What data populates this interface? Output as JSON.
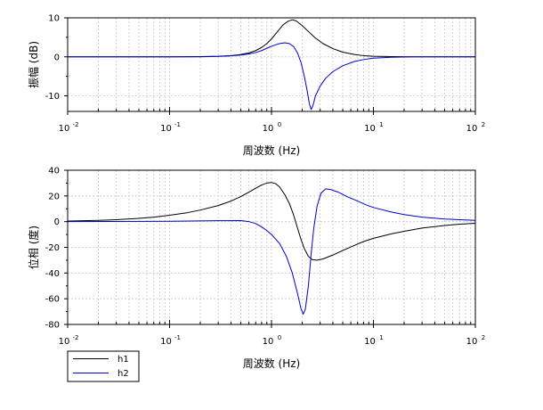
{
  "chart_data": [
    {
      "type": "line",
      "xlabel": "周波数 (Hz)",
      "ylabel": "振幅 (dB)",
      "xscale": "log",
      "xlim": [
        0.01,
        100
      ],
      "ylim": [
        -14,
        10
      ],
      "xticks": [
        {
          "value": 0.01,
          "base": "10",
          "exp": "-2"
        },
        {
          "value": 0.1,
          "base": "10",
          "exp": "-1"
        },
        {
          "value": 1,
          "base": "10",
          "exp": "0"
        },
        {
          "value": 10,
          "base": "10",
          "exp": "1"
        },
        {
          "value": 100,
          "base": "10",
          "exp": "2"
        }
      ],
      "yticks": [
        {
          "value": 10,
          "label": "10"
        },
        {
          "value": 0,
          "label": "0"
        },
        {
          "value": -10,
          "label": "-10"
        }
      ],
      "grid": true,
      "series": [
        {
          "name": "h1",
          "color": "#000000",
          "points": [
            [
              0.01,
              0
            ],
            [
              0.1,
              0
            ],
            [
              0.2,
              0.05
            ],
            [
              0.3,
              0.15
            ],
            [
              0.4,
              0.3
            ],
            [
              0.5,
              0.6
            ],
            [
              0.6,
              1.0
            ],
            [
              0.7,
              1.6
            ],
            [
              0.8,
              2.4
            ],
            [
              0.9,
              3.4
            ],
            [
              1.0,
              4.6
            ],
            [
              1.1,
              5.9
            ],
            [
              1.2,
              7.1
            ],
            [
              1.3,
              8.2
            ],
            [
              1.45,
              9.1
            ],
            [
              1.6,
              9.5
            ],
            [
              1.75,
              9.2
            ],
            [
              2.0,
              8.0
            ],
            [
              2.3,
              6.5
            ],
            [
              2.7,
              4.8
            ],
            [
              3.2,
              3.4
            ],
            [
              4.0,
              2.1
            ],
            [
              5.0,
              1.2
            ],
            [
              6.5,
              0.6
            ],
            [
              8.0,
              0.3
            ],
            [
              10,
              0.15
            ],
            [
              15,
              0.05
            ],
            [
              25,
              0
            ],
            [
              100,
              0
            ]
          ]
        },
        {
          "name": "h2",
          "color": "#0000cc",
          "points": [
            [
              0.01,
              0
            ],
            [
              0.2,
              0
            ],
            [
              0.3,
              0.1
            ],
            [
              0.4,
              0.25
            ],
            [
              0.5,
              0.45
            ],
            [
              0.6,
              0.75
            ],
            [
              0.7,
              1.1
            ],
            [
              0.8,
              1.6
            ],
            [
              0.9,
              2.2
            ],
            [
              1.0,
              2.7
            ],
            [
              1.1,
              3.1
            ],
            [
              1.2,
              3.4
            ],
            [
              1.35,
              3.6
            ],
            [
              1.5,
              3.4
            ],
            [
              1.65,
              2.6
            ],
            [
              1.8,
              1.0
            ],
            [
              1.95,
              -1.5
            ],
            [
              2.1,
              -5.0
            ],
            [
              2.25,
              -9.0
            ],
            [
              2.35,
              -12.0
            ],
            [
              2.45,
              -13.5
            ],
            [
              2.55,
              -12.5
            ],
            [
              2.7,
              -10.0
            ],
            [
              3.0,
              -7.5
            ],
            [
              3.4,
              -5.5
            ],
            [
              4.0,
              -3.8
            ],
            [
              5.0,
              -2.3
            ],
            [
              6.5,
              -1.2
            ],
            [
              8.0,
              -0.7
            ],
            [
              10,
              -0.35
            ],
            [
              15,
              -0.1
            ],
            [
              25,
              0
            ],
            [
              100,
              0
            ]
          ]
        }
      ]
    },
    {
      "type": "line",
      "xlabel": "周波数 (Hz)",
      "ylabel": "位相 (度)",
      "xscale": "log",
      "xlim": [
        0.01,
        100
      ],
      "ylim": [
        -80,
        40
      ],
      "xticks": [
        {
          "value": 0.01,
          "base": "10",
          "exp": "-2"
        },
        {
          "value": 0.1,
          "base": "10",
          "exp": "-1"
        },
        {
          "value": 1,
          "base": "10",
          "exp": "0"
        },
        {
          "value": 10,
          "base": "10",
          "exp": "1"
        },
        {
          "value": 100,
          "base": "10",
          "exp": "2"
        }
      ],
      "yticks": [
        {
          "value": 40,
          "label": "40"
        },
        {
          "value": 20,
          "label": "20"
        },
        {
          "value": 0,
          "label": "0"
        },
        {
          "value": -20,
          "label": "-20"
        },
        {
          "value": -40,
          "label": "-40"
        },
        {
          "value": -60,
          "label": "-60"
        },
        {
          "value": -80,
          "label": "-80"
        }
      ],
      "grid": true,
      "legend": {
        "placement": "bottom-left-outside",
        "entries": [
          "h1",
          "h2"
        ]
      },
      "series": [
        {
          "name": "h1",
          "color": "#000000",
          "points": [
            [
              0.01,
              0.5
            ],
            [
              0.02,
              1
            ],
            [
              0.03,
              1.5
            ],
            [
              0.05,
              2.5
            ],
            [
              0.07,
              3.5
            ],
            [
              0.1,
              5
            ],
            [
              0.15,
              7
            ],
            [
              0.2,
              9
            ],
            [
              0.3,
              12.5
            ],
            [
              0.4,
              16
            ],
            [
              0.5,
              19.5
            ],
            [
              0.6,
              23
            ],
            [
              0.7,
              26
            ],
            [
              0.8,
              28.5
            ],
            [
              0.9,
              30
            ],
            [
              1.0,
              30.5
            ],
            [
              1.1,
              29.5
            ],
            [
              1.2,
              27
            ],
            [
              1.35,
              21
            ],
            [
              1.5,
              14
            ],
            [
              1.65,
              5
            ],
            [
              1.8,
              -5
            ],
            [
              1.95,
              -14
            ],
            [
              2.1,
              -21
            ],
            [
              2.3,
              -27
            ],
            [
              2.5,
              -29.5
            ],
            [
              2.8,
              -30
            ],
            [
              3.2,
              -29
            ],
            [
              4.0,
              -26
            ],
            [
              5.0,
              -22.5
            ],
            [
              6.5,
              -18.5
            ],
            [
              8.0,
              -15.5
            ],
            [
              10,
              -13
            ],
            [
              15,
              -9.5
            ],
            [
              20,
              -7.5
            ],
            [
              30,
              -5
            ],
            [
              50,
              -3
            ],
            [
              70,
              -2
            ],
            [
              100,
              -1.3
            ]
          ]
        },
        {
          "name": "h2",
          "color": "#0000cc",
          "points": [
            [
              0.01,
              0
            ],
            [
              0.1,
              0.3
            ],
            [
              0.3,
              0.7
            ],
            [
              0.5,
              0.8
            ],
            [
              0.6,
              0
            ],
            [
              0.7,
              -1.5
            ],
            [
              0.8,
              -4
            ],
            [
              0.9,
              -7
            ],
            [
              1.0,
              -10
            ],
            [
              1.2,
              -17
            ],
            [
              1.4,
              -27
            ],
            [
              1.6,
              -40
            ],
            [
              1.8,
              -56
            ],
            [
              1.95,
              -68
            ],
            [
              2.05,
              -72
            ],
            [
              2.15,
              -68
            ],
            [
              2.3,
              -50
            ],
            [
              2.45,
              -25
            ],
            [
              2.6,
              -5
            ],
            [
              2.8,
              12
            ],
            [
              3.05,
              22
            ],
            [
              3.4,
              25.5
            ],
            [
              3.8,
              25
            ],
            [
              4.5,
              23
            ],
            [
              5.5,
              19.5
            ],
            [
              7,
              16
            ],
            [
              8.5,
              13
            ],
            [
              10,
              11
            ],
            [
              15,
              7.5
            ],
            [
              20,
              5.5
            ],
            [
              30,
              3.5
            ],
            [
              50,
              2
            ],
            [
              100,
              1
            ]
          ]
        }
      ]
    }
  ]
}
